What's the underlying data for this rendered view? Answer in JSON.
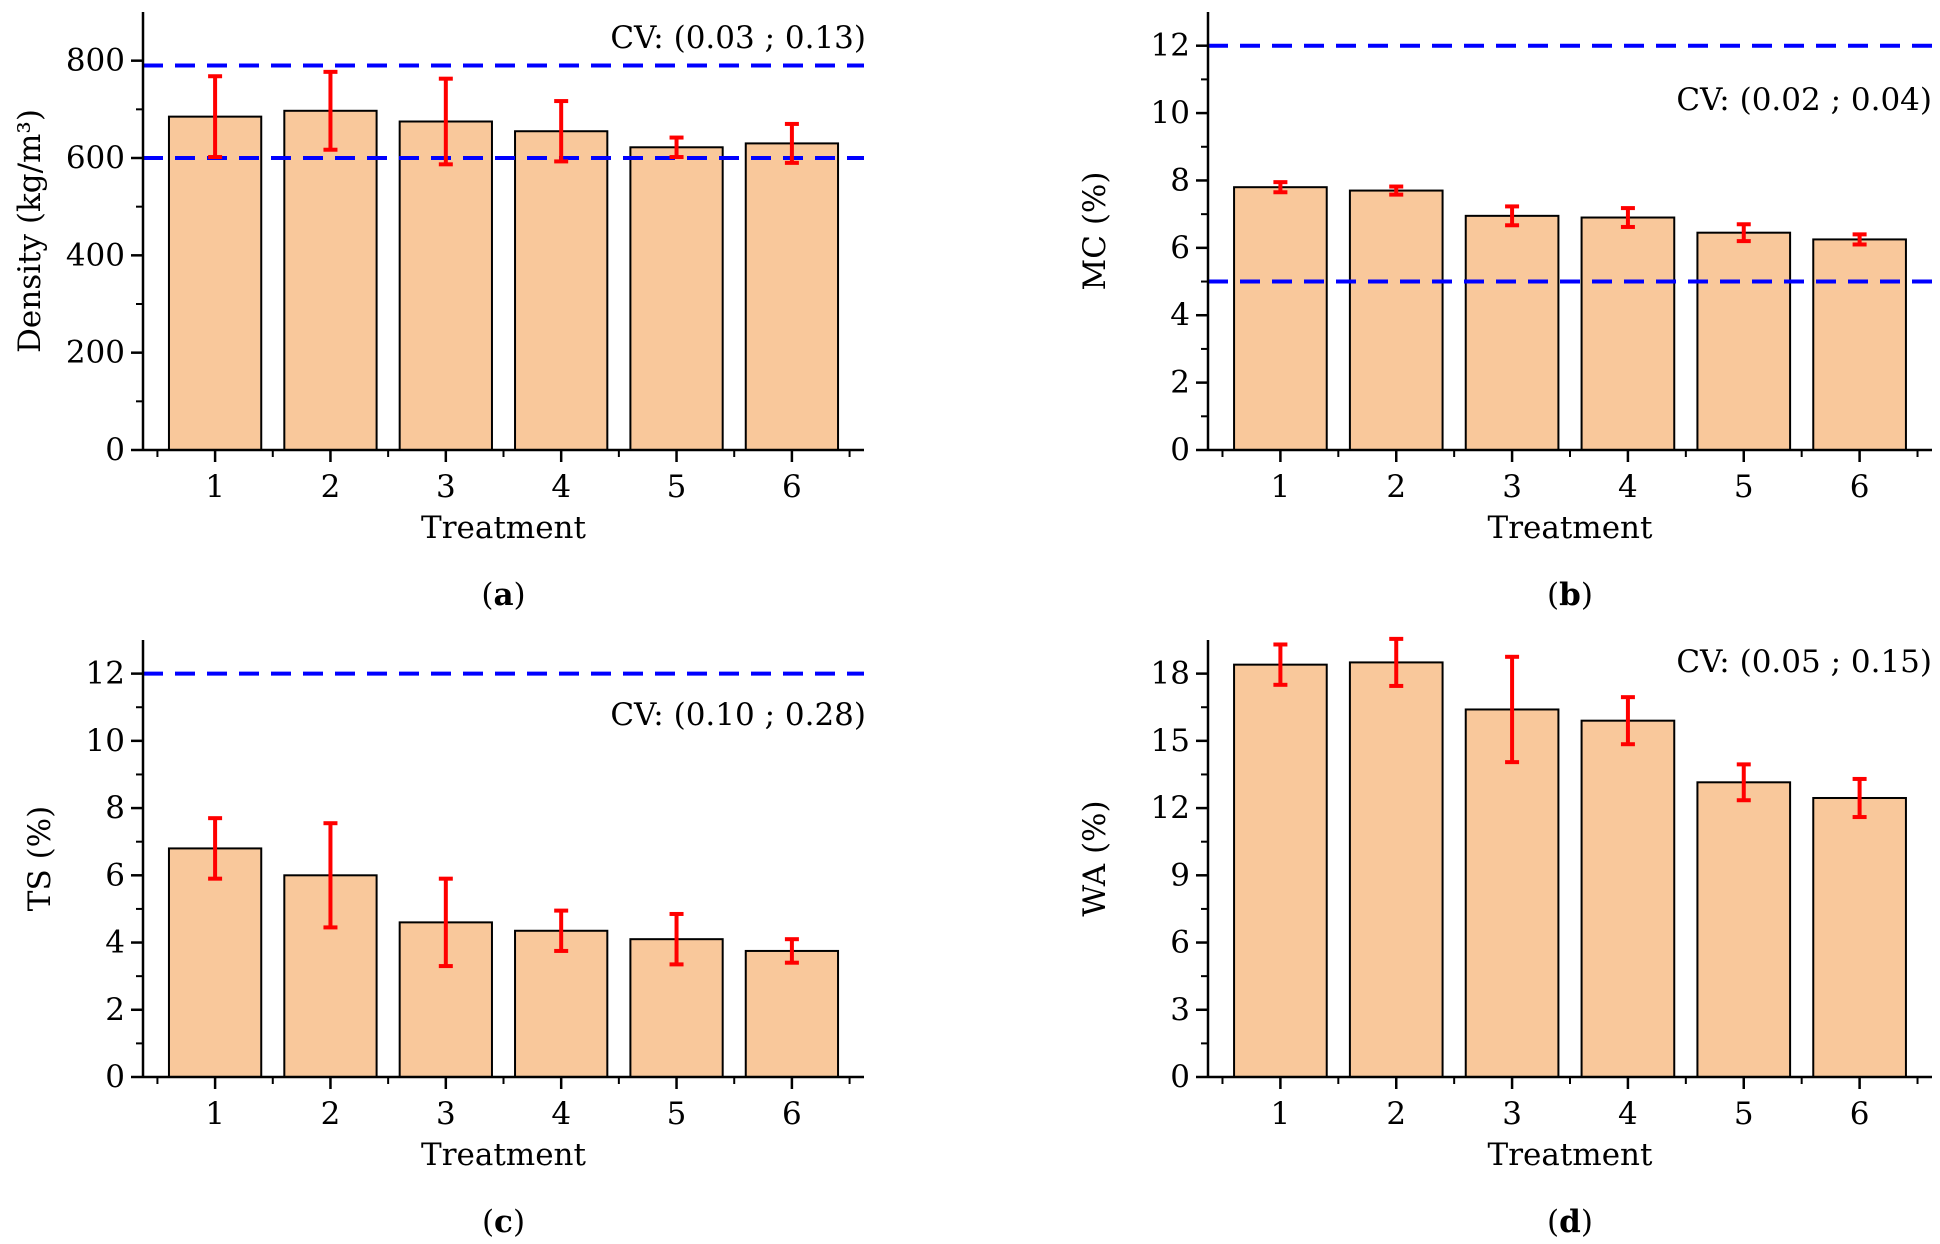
{
  "colors": {
    "bar_fill": "#F9C89B",
    "bar_stroke": "#000000",
    "error_bar": "#FF0000",
    "reference_line": "#0000FF",
    "axis": "#000000"
  },
  "chart_data": [
    {
      "type": "bar",
      "panel_label": "a",
      "xlabel": "Treatment",
      "ylabel": "Density (kg/m³)",
      "categories": [
        "1",
        "2",
        "3",
        "4",
        "5",
        "6"
      ],
      "values": [
        685,
        697,
        675,
        655,
        622,
        630
      ],
      "errors": [
        83,
        80,
        88,
        62,
        20,
        40
      ],
      "ylim": [
        0,
        900
      ],
      "yticks": [
        0,
        200,
        400,
        600,
        800
      ],
      "minor_ticks": true,
      "reference_lines": [
        790,
        600
      ],
      "annotation": "CV: (0.03 ; 0.13)",
      "annotation_position": "top-right"
    },
    {
      "type": "bar",
      "panel_label": "b",
      "xlabel": "Treatment",
      "ylabel": "MC (%)",
      "categories": [
        "1",
        "2",
        "3",
        "4",
        "5",
        "6"
      ],
      "values": [
        7.8,
        7.7,
        6.95,
        6.9,
        6.45,
        6.25
      ],
      "errors": [
        0.15,
        0.12,
        0.28,
        0.28,
        0.25,
        0.15
      ],
      "ylim": [
        0,
        13
      ],
      "yticks": [
        0,
        2,
        4,
        6,
        8,
        10,
        12
      ],
      "minor_ticks": true,
      "reference_lines": [
        12,
        5
      ],
      "annotation": "CV: (0.02 ; 0.04)",
      "annotation_position": "top-right"
    },
    {
      "type": "bar",
      "panel_label": "c",
      "xlabel": "Treatment",
      "ylabel": "TS (%)",
      "categories": [
        "1",
        "2",
        "3",
        "4",
        "5",
        "6"
      ],
      "values": [
        6.8,
        6.0,
        4.6,
        4.35,
        4.1,
        3.75
      ],
      "errors": [
        0.9,
        1.55,
        1.3,
        0.6,
        0.75,
        0.35
      ],
      "ylim": [
        0,
        13
      ],
      "yticks": [
        0,
        2,
        4,
        6,
        8,
        10,
        12
      ],
      "minor_ticks": true,
      "reference_lines": [
        12
      ],
      "annotation": "CV: (0.10 ; 0.28)",
      "annotation_position": "top-right"
    },
    {
      "type": "bar",
      "panel_label": "d",
      "xlabel": "Treatment",
      "ylabel": "WA (%)",
      "categories": [
        "1",
        "2",
        "3",
        "4",
        "5",
        "6"
      ],
      "values": [
        18.4,
        18.5,
        16.4,
        15.9,
        13.15,
        12.45
      ],
      "errors": [
        0.9,
        1.05,
        2.35,
        1.05,
        0.8,
        0.85
      ],
      "ylim": [
        0,
        19.5
      ],
      "yticks": [
        0,
        3,
        6,
        9,
        12,
        15,
        18
      ],
      "minor_ticks": true,
      "reference_lines": [],
      "annotation": "CV: (0.05 ; 0.15)",
      "annotation_position": "top-right"
    }
  ]
}
